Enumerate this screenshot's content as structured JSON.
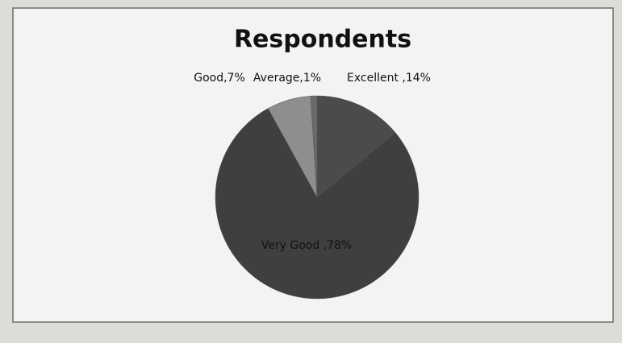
{
  "chart_data": {
    "type": "pie",
    "title": "Respondents",
    "values": [
      14,
      78,
      7,
      1
    ],
    "value_labels": [
      "Excellent ,14%",
      "Very Good ,78%",
      "Good,7%",
      "Average,1%"
    ],
    "colors": [
      "#4b4b4b",
      "#3f3f3f",
      "#8e8e8e",
      "#6a6a6a"
    ]
  }
}
